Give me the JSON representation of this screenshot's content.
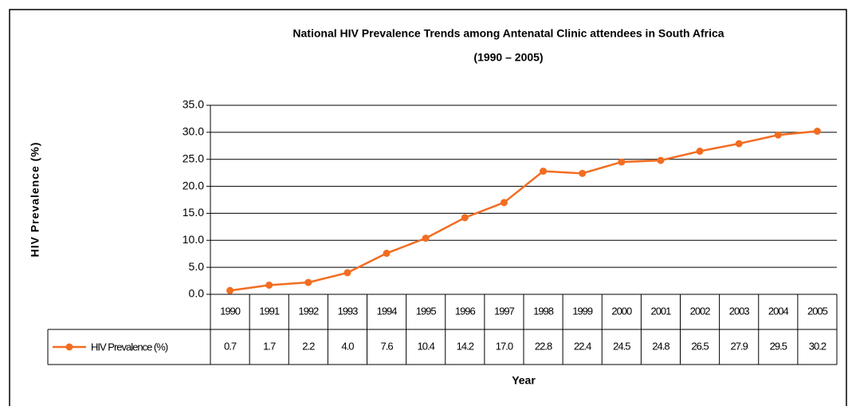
{
  "chart_data": {
    "type": "line",
    "title": "National HIV Prevalence Trends among Antenatal Clinic attendees in South Africa",
    "subtitle": "(1990 – 2005)",
    "x_label": "Year",
    "y_label": "HIV Prevalence (%)",
    "categories": [
      "1990",
      "1991",
      "1992",
      "1993",
      "1994",
      "1995",
      "1996",
      "1997",
      "1998",
      "1999",
      "2000",
      "2001",
      "2002",
      "2003",
      "2004",
      "2005"
    ],
    "series": [
      {
        "name": "HIV Prevalence (%)",
        "color": "#f26d21",
        "values": [
          0.7,
          1.7,
          2.2,
          4.0,
          7.6,
          10.4,
          14.2,
          17.0,
          22.8,
          22.4,
          24.5,
          24.8,
          26.5,
          27.9,
          29.5,
          30.2
        ],
        "value_labels": [
          "0.7",
          "1.7",
          "2.2",
          "4.0",
          "7.6",
          "10.4",
          "14.2",
          "17.0",
          "22.8",
          "22.4",
          "24.5",
          "24.8",
          "26.5",
          "27.9",
          "29.5",
          "30.2"
        ]
      }
    ],
    "ylim": [
      0,
      35
    ],
    "yticks": [
      {
        "value": 0,
        "label": "0.0"
      },
      {
        "value": 5,
        "label": "5.0"
      },
      {
        "value": 10,
        "label": "10.0"
      },
      {
        "value": 15,
        "label": "15.0"
      },
      {
        "value": 20,
        "label": "20.0"
      },
      {
        "value": 25,
        "label": "25.0"
      },
      {
        "value": 30,
        "label": "30.0"
      },
      {
        "value": 35,
        "label": "35.0"
      }
    ],
    "grid": true
  }
}
